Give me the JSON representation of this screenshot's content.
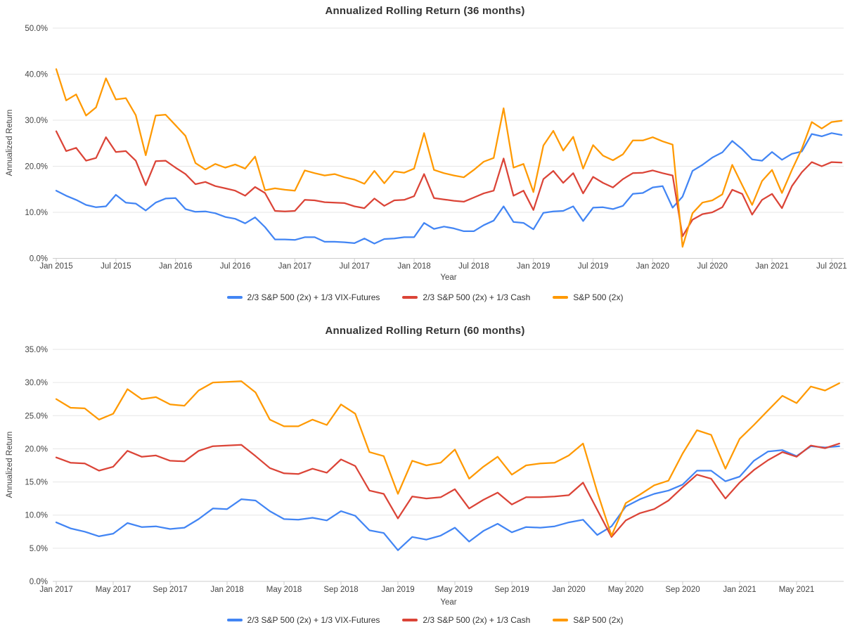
{
  "style": {
    "background": "#ffffff",
    "title_color": "#333333",
    "tick_label_color": "#444444",
    "axis_title_color": "#444444",
    "grid_color": "#e6e6e6",
    "axis_line_color": "#cccccc",
    "legend_text_color": "#333333"
  },
  "chart_data": [
    {
      "type": "line",
      "title": "Annualized Rolling Return (36 months)",
      "xlabel": "Year",
      "ylabel": "Annualized Return",
      "ylim": [
        0,
        50
      ],
      "ytick_step": 10,
      "ytick_labels": [
        "0.0%",
        "10.0%",
        "20.0%",
        "30.0%",
        "40.0%",
        "50.0%"
      ],
      "xtick_every": 6,
      "grid": true,
      "legend_position": "bottom",
      "x": [
        "Jan 2015",
        "Feb 2015",
        "Mar 2015",
        "Apr 2015",
        "May 2015",
        "Jun 2015",
        "Jul 2015",
        "Aug 2015",
        "Sep 2015",
        "Oct 2015",
        "Nov 2015",
        "Dec 2015",
        "Jan 2016",
        "Feb 2016",
        "Mar 2016",
        "Apr 2016",
        "May 2016",
        "Jun 2016",
        "Jul 2016",
        "Aug 2016",
        "Sep 2016",
        "Oct 2016",
        "Nov 2016",
        "Dec 2016",
        "Jan 2017",
        "Feb 2017",
        "Mar 2017",
        "Apr 2017",
        "May 2017",
        "Jun 2017",
        "Jul 2017",
        "Aug 2017",
        "Sep 2017",
        "Oct 2017",
        "Nov 2017",
        "Dec 2017",
        "Jan 2018",
        "Feb 2018",
        "Mar 2018",
        "Apr 2018",
        "May 2018",
        "Jun 2018",
        "Jul 2018",
        "Aug 2018",
        "Sep 2018",
        "Oct 2018",
        "Nov 2018",
        "Dec 2018",
        "Jan 2019",
        "Feb 2019",
        "Mar 2019",
        "Apr 2019",
        "May 2019",
        "Jun 2019",
        "Jul 2019",
        "Aug 2019",
        "Sep 2019",
        "Oct 2019",
        "Nov 2019",
        "Dec 2019",
        "Jan 2020",
        "Feb 2020",
        "Mar 2020",
        "Apr 2020",
        "May 2020",
        "Jun 2020",
        "Jul 2020",
        "Aug 2020",
        "Sep 2020",
        "Oct 2020",
        "Nov 2020",
        "Dec 2020",
        "Jan 2021",
        "Feb 2021",
        "Mar 2021",
        "Apr 2021",
        "May 2021",
        "Jun 2021",
        "Jul 2021",
        "Aug 2021"
      ],
      "series": [
        {
          "name": "2/3 S&P 500 (2x) + 1/3 VIX-Futures",
          "color": "#4285F4",
          "values": [
            14.7,
            13.6,
            12.7,
            11.6,
            11.1,
            11.3,
            13.8,
            12.1,
            11.9,
            10.4,
            12.1,
            13.0,
            13.1,
            10.7,
            10.1,
            10.2,
            9.8,
            9.0,
            8.6,
            7.6,
            8.9,
            6.8,
            4.1,
            4.1,
            4.0,
            4.6,
            4.6,
            3.6,
            3.6,
            3.5,
            3.3,
            4.3,
            3.2,
            4.2,
            4.3,
            4.6,
            4.6,
            7.7,
            6.4,
            6.9,
            6.5,
            5.9,
            5.9,
            7.2,
            8.2,
            11.3,
            7.9,
            7.7,
            6.3,
            9.9,
            10.2,
            10.3,
            11.3,
            8.1,
            11.0,
            11.1,
            10.7,
            11.4,
            14.0,
            14.2,
            15.4,
            15.7,
            11.0,
            13.4,
            19.0,
            20.3,
            21.9,
            23.0,
            25.5,
            23.7,
            21.5,
            21.2,
            23.1,
            21.4,
            22.7,
            23.2,
            27.0,
            26.5,
            27.2,
            26.8
          ]
        },
        {
          "name": "2/3 S&P 500 (2x) + 1/3 Cash",
          "color": "#DB4437",
          "values": [
            27.6,
            23.3,
            24.0,
            21.2,
            21.8,
            26.3,
            23.1,
            23.3,
            21.2,
            15.9,
            21.1,
            21.2,
            19.7,
            18.3,
            16.1,
            16.6,
            15.7,
            15.2,
            14.7,
            13.6,
            15.5,
            14.2,
            10.3,
            10.2,
            10.3,
            12.7,
            12.6,
            12.2,
            12.1,
            12.0,
            11.3,
            10.9,
            13.0,
            11.4,
            12.6,
            12.7,
            13.5,
            18.3,
            13.1,
            12.8,
            12.5,
            12.3,
            13.2,
            14.1,
            14.7,
            21.7,
            13.6,
            14.7,
            10.5,
            17.2,
            19.0,
            16.4,
            18.5,
            14.1,
            17.7,
            16.4,
            15.4,
            17.2,
            18.5,
            18.6,
            19.1,
            18.5,
            18.0,
            4.8,
            8.4,
            9.6,
            10.0,
            11.1,
            14.9,
            14.0,
            9.5,
            12.7,
            14.0,
            10.9,
            15.7,
            18.7,
            20.9,
            20.0,
            20.9,
            20.8
          ]
        },
        {
          "name": "S&P 500 (2x)",
          "color": "#FF9900",
          "values": [
            41.1,
            34.3,
            35.6,
            31.0,
            32.8,
            39.1,
            34.5,
            34.8,
            31.1,
            22.4,
            31.0,
            31.2,
            28.9,
            26.6,
            20.7,
            19.3,
            20.5,
            19.7,
            20.4,
            19.5,
            22.1,
            14.8,
            15.2,
            14.9,
            14.7,
            19.1,
            18.5,
            18.0,
            18.3,
            17.6,
            17.1,
            16.2,
            19.0,
            16.3,
            18.9,
            18.6,
            19.5,
            27.2,
            19.2,
            18.5,
            18.0,
            17.6,
            19.2,
            21.0,
            21.8,
            32.6,
            19.7,
            20.5,
            14.4,
            24.5,
            27.7,
            23.4,
            26.4,
            19.5,
            24.6,
            22.3,
            21.3,
            22.6,
            25.6,
            25.6,
            26.3,
            25.4,
            24.7,
            2.5,
            9.8,
            12.1,
            12.6,
            13.9,
            20.3,
            15.9,
            11.6,
            16.8,
            19.2,
            14.2,
            19.2,
            23.8,
            29.6,
            28.2,
            29.6,
            29.9
          ]
        }
      ]
    },
    {
      "type": "line",
      "title": "Annualized Rolling Return (60 months)",
      "xlabel": "Year",
      "ylabel": "Annualized Return",
      "ylim": [
        0,
        35
      ],
      "ytick_step": 5,
      "ytick_labels": [
        "0.0%",
        "5.0%",
        "10.0%",
        "15.0%",
        "20.0%",
        "25.0%",
        "30.0%",
        "35.0%"
      ],
      "xtick_every": 4,
      "grid": true,
      "legend_position": "bottom",
      "x": [
        "Jan 2017",
        "Feb 2017",
        "Mar 2017",
        "Apr 2017",
        "May 2017",
        "Jun 2017",
        "Jul 2017",
        "Aug 2017",
        "Sep 2017",
        "Oct 2017",
        "Nov 2017",
        "Dec 2017",
        "Jan 2018",
        "Feb 2018",
        "Mar 2018",
        "Apr 2018",
        "May 2018",
        "Jun 2018",
        "Jul 2018",
        "Aug 2018",
        "Sep 2018",
        "Oct 2018",
        "Nov 2018",
        "Dec 2018",
        "Jan 2019",
        "Feb 2019",
        "Mar 2019",
        "Apr 2019",
        "May 2019",
        "Jun 2019",
        "Jul 2019",
        "Aug 2019",
        "Sep 2019",
        "Oct 2019",
        "Nov 2019",
        "Dec 2019",
        "Jan 2020",
        "Feb 2020",
        "Mar 2020",
        "Apr 2020",
        "May 2020",
        "Jun 2020",
        "Jul 2020",
        "Aug 2020",
        "Sep 2020",
        "Oct 2020",
        "Nov 2020",
        "Dec 2020",
        "Jan 2021",
        "Feb 2021",
        "Mar 2021",
        "Apr 2021",
        "May 2021",
        "Jun 2021",
        "Jul 2021",
        "Aug 2021"
      ],
      "series": [
        {
          "name": "2/3 S&P 500 (2x) + 1/3 VIX-Futures",
          "color": "#4285F4",
          "values": [
            8.9,
            8.0,
            7.5,
            6.8,
            7.2,
            8.8,
            8.2,
            8.3,
            7.9,
            8.1,
            9.4,
            11.0,
            10.9,
            12.4,
            12.2,
            10.6,
            9.4,
            9.3,
            9.6,
            9.2,
            10.6,
            9.9,
            7.7,
            7.3,
            4.7,
            6.7,
            6.3,
            6.9,
            8.1,
            6.0,
            7.6,
            8.7,
            7.4,
            8.2,
            8.1,
            8.3,
            8.9,
            9.3,
            7.0,
            8.3,
            11.3,
            12.4,
            13.2,
            13.7,
            14.6,
            16.7,
            16.7,
            15.1,
            15.8,
            18.2,
            19.6,
            19.8,
            18.9,
            20.4,
            20.2,
            20.4
          ]
        },
        {
          "name": "2/3 S&P 500 (2x) + 1/3 Cash",
          "color": "#DB4437",
          "values": [
            18.7,
            17.9,
            17.8,
            16.7,
            17.3,
            19.7,
            18.8,
            19.0,
            18.2,
            18.1,
            19.7,
            20.4,
            20.5,
            20.6,
            18.9,
            17.1,
            16.3,
            16.2,
            17.0,
            16.4,
            18.4,
            17.4,
            13.7,
            13.2,
            9.5,
            12.8,
            12.5,
            12.7,
            13.9,
            11.0,
            12.3,
            13.4,
            11.6,
            12.7,
            12.7,
            12.8,
            13.0,
            14.9,
            10.8,
            6.7,
            9.2,
            10.3,
            10.9,
            12.2,
            14.2,
            16.1,
            15.5,
            12.5,
            14.9,
            16.8,
            18.3,
            19.5,
            18.8,
            20.5,
            20.1,
            20.8
          ]
        },
        {
          "name": "S&P 500 (2x)",
          "color": "#FF9900",
          "values": [
            27.5,
            26.2,
            26.1,
            24.4,
            25.3,
            29.0,
            27.5,
            27.8,
            26.7,
            26.5,
            28.8,
            30.0,
            30.1,
            30.2,
            28.5,
            24.4,
            23.4,
            23.4,
            24.4,
            23.6,
            26.7,
            25.3,
            19.5,
            18.9,
            13.2,
            18.2,
            17.5,
            17.9,
            19.9,
            15.5,
            17.3,
            18.8,
            16.1,
            17.5,
            17.8,
            17.9,
            19.0,
            20.8,
            13.5,
            6.9,
            11.8,
            13.1,
            14.5,
            15.2,
            19.3,
            22.8,
            22.1,
            17.0,
            21.5,
            23.6,
            25.8,
            28.0,
            26.9,
            29.4,
            28.8,
            29.9
          ]
        }
      ]
    }
  ]
}
